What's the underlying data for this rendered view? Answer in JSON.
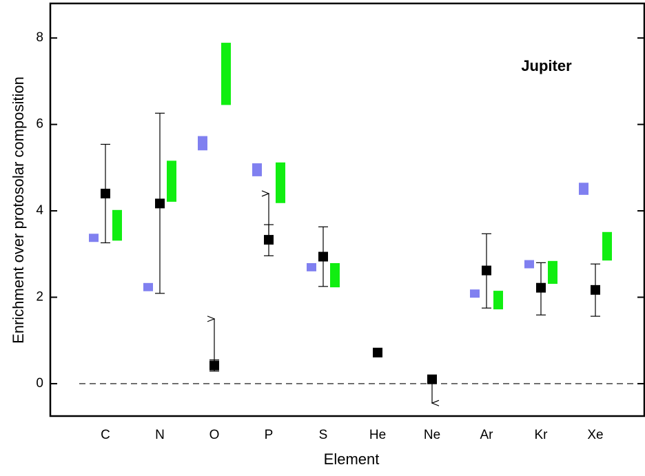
{
  "chart_data": {
    "type": "errorbar",
    "title": "Jupiter",
    "x_label": "Element",
    "y_label": "Enrichment over protosolar composition",
    "categories": [
      "C",
      "N",
      "O",
      "P",
      "S",
      "He",
      "Ne",
      "Ar",
      "Kr",
      "Xe"
    ],
    "ylim": [
      -0.75,
      8.8
    ],
    "yticks": [
      0,
      2,
      4,
      6,
      8
    ],
    "reference_line": 0,
    "series": [
      {
        "style": "point",
        "color": "#000000",
        "values": [
          4.4,
          4.17,
          0.42,
          3.33,
          2.94,
          0.72,
          0.1,
          2.62,
          2.22,
          2.17
        ],
        "lower": [
          3.26,
          2.09,
          0.29,
          2.96,
          2.25,
          null,
          null,
          1.75,
          1.59,
          1.56
        ],
        "upper": [
          5.54,
          6.26,
          0.55,
          3.68,
          3.63,
          null,
          null,
          3.47,
          2.8,
          2.77
        ],
        "limits": [
          null,
          null,
          1.5,
          4.4,
          null,
          null,
          -0.45,
          null,
          null,
          null
        ]
      },
      {
        "style": "range",
        "color": "#8080f0",
        "low": [
          3.28,
          2.14,
          5.4,
          4.8,
          2.6,
          null,
          null,
          1.99,
          2.67,
          4.37
        ],
        "high": [
          3.47,
          2.33,
          5.73,
          5.1,
          2.79,
          null,
          null,
          2.18,
          2.86,
          4.65
        ]
      },
      {
        "style": "range",
        "color": "#11ee11",
        "low": [
          3.31,
          4.21,
          6.45,
          4.18,
          2.23,
          null,
          null,
          1.72,
          2.31,
          2.85
        ],
        "high": [
          4.02,
          5.16,
          7.89,
          5.12,
          2.79,
          null,
          null,
          2.15,
          2.84,
          3.51
        ]
      }
    ]
  }
}
